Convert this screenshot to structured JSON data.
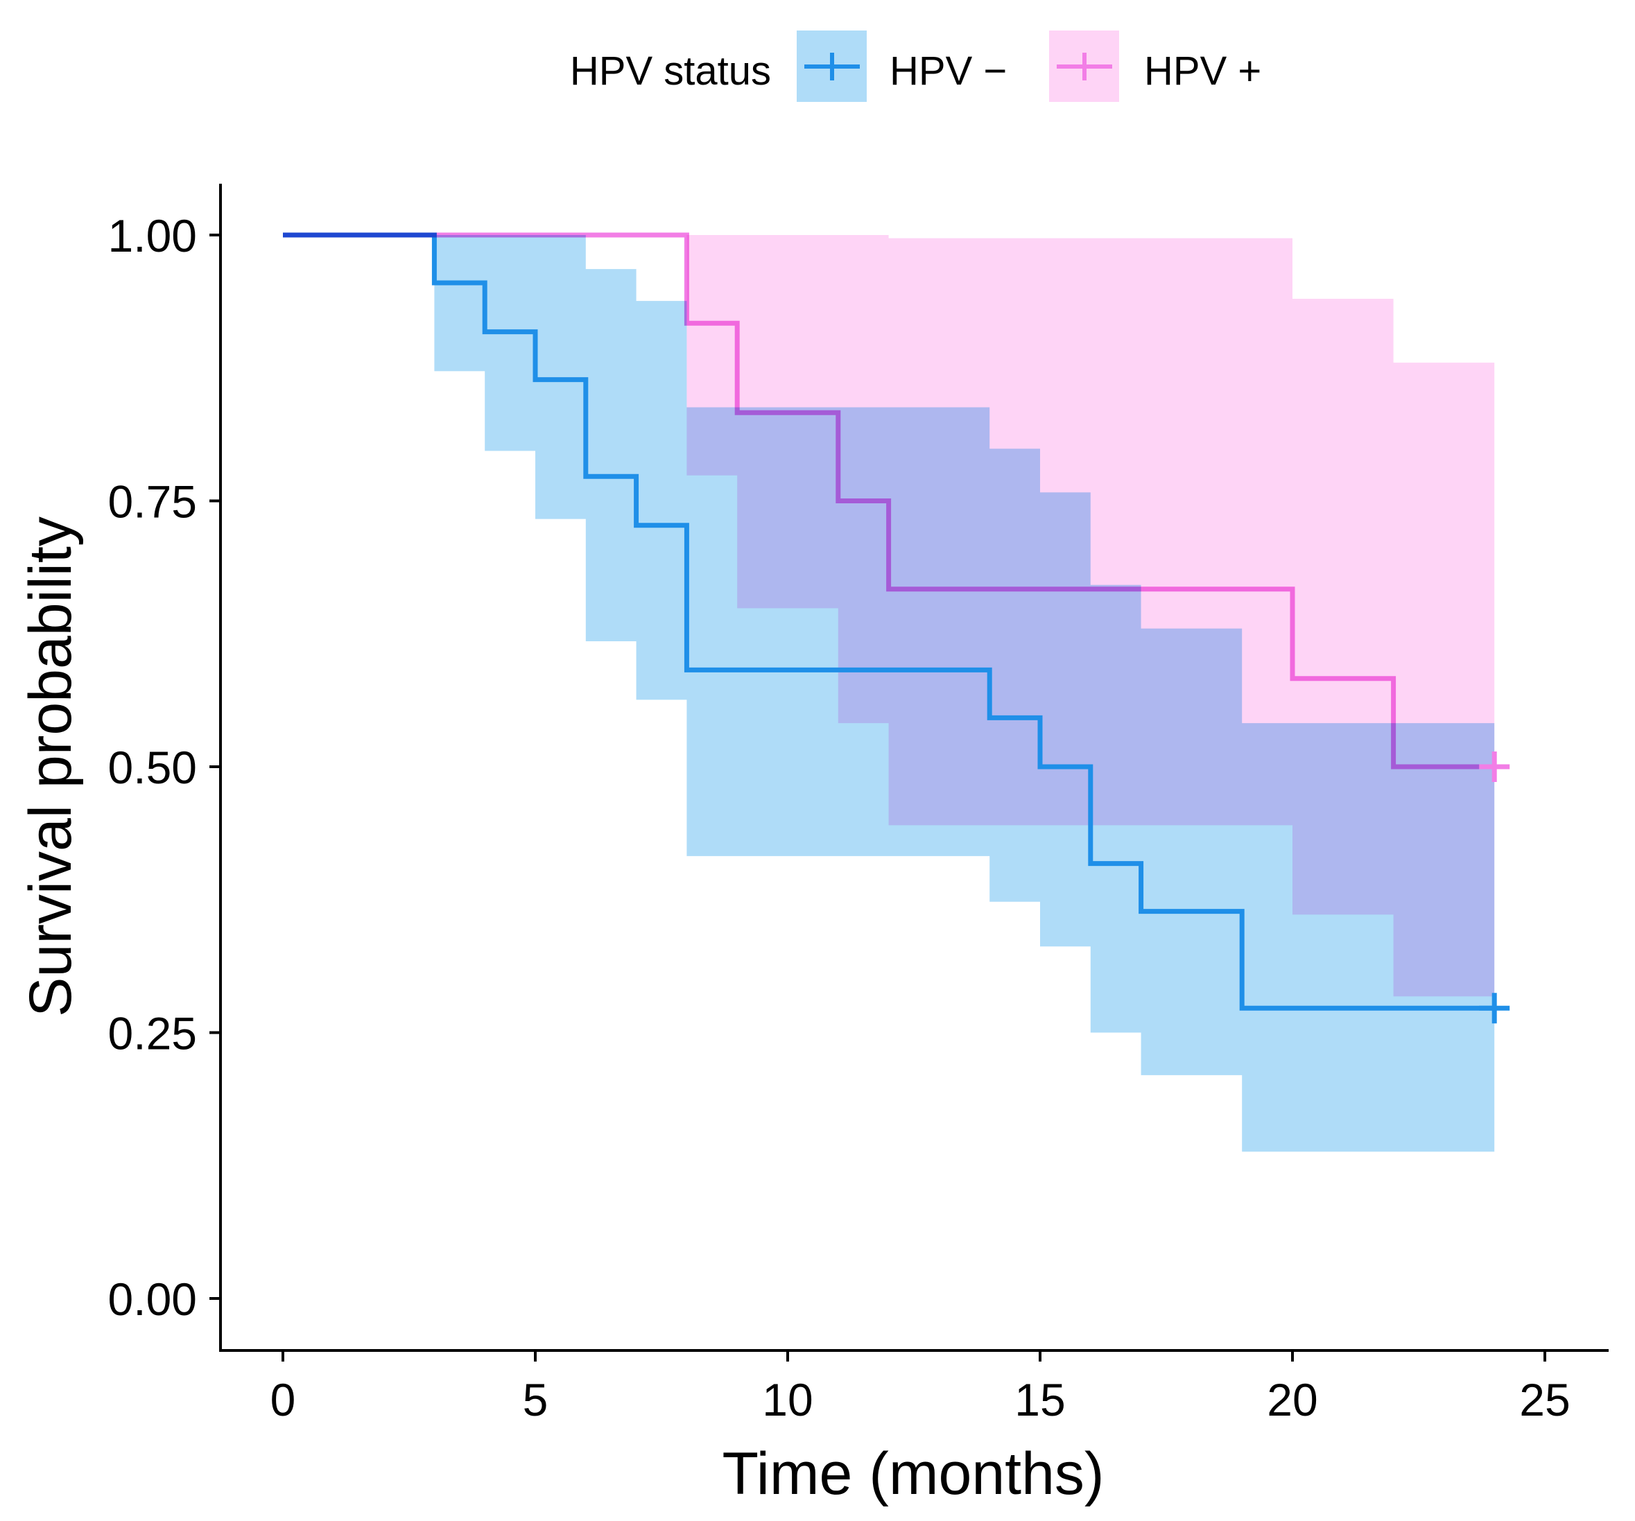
{
  "chart_data": {
    "type": "line",
    "subtype": "kaplan-meier survival curve with confidence bands",
    "xlabel": "Time (months)",
    "ylabel": "Survival probability",
    "xlim": [
      -1.2,
      26.3
    ],
    "ylim": [
      -0.05,
      1.05
    ],
    "x_ticks": [
      {
        "value": 0,
        "label": "0"
      },
      {
        "value": 5,
        "label": "5"
      },
      {
        "value": 10,
        "label": "10"
      },
      {
        "value": 15,
        "label": "15"
      },
      {
        "value": 20,
        "label": "20"
      },
      {
        "value": 25,
        "label": "25"
      }
    ],
    "y_ticks": [
      {
        "value": 0,
        "label": "0.00"
      },
      {
        "value": 0.25,
        "label": "0.25"
      },
      {
        "value": 0.5,
        "label": "0.50"
      },
      {
        "value": 0.75,
        "label": "0.75"
      },
      {
        "value": 1,
        "label": "1.00"
      }
    ],
    "grid": false,
    "legend": {
      "title": "HPV status",
      "position": "top"
    },
    "series": [
      {
        "name": "HPV −",
        "color": "#1f8fe8",
        "band_color": "#afdcf8",
        "end_time": 24,
        "steps": [
          {
            "t": 0,
            "s": 1.0,
            "lower": 1.0,
            "upper": 1.0
          },
          {
            "t": 3,
            "s": 0.955,
            "lower": 0.872,
            "upper": 1.0
          },
          {
            "t": 4,
            "s": 0.909,
            "lower": 0.797,
            "upper": 1.0
          },
          {
            "t": 5,
            "s": 0.864,
            "lower": 0.733,
            "upper": 1.0
          },
          {
            "t": 6,
            "s": 0.773,
            "lower": 0.618,
            "upper": 0.968
          },
          {
            "t": 7,
            "s": 0.727,
            "lower": 0.563,
            "upper": 0.938
          },
          {
            "t": 8,
            "s": 0.591,
            "lower": 0.416,
            "upper": 0.838
          },
          {
            "t": 14,
            "s": 0.546,
            "lower": 0.373,
            "upper": 0.799
          },
          {
            "t": 15,
            "s": 0.5,
            "lower": 0.331,
            "upper": 0.758
          },
          {
            "t": 16,
            "s": 0.409,
            "lower": 0.25,
            "upper": 0.671
          },
          {
            "t": 17,
            "s": 0.364,
            "lower": 0.21,
            "upper": 0.63
          },
          {
            "t": 19,
            "s": 0.273,
            "lower": 0.138,
            "upper": 0.541
          }
        ],
        "censored": [
          {
            "t": 24,
            "s": 0.273
          }
        ]
      },
      {
        "name": "HPV +",
        "color": "#f27ee6",
        "band_color": "#fed4f6",
        "end_time": 24,
        "steps": [
          {
            "t": 0,
            "s": 1.0,
            "lower": 1.0,
            "upper": 1.0
          },
          {
            "t": 8,
            "s": 0.917,
            "lower": 0.774,
            "upper": 1.0
          },
          {
            "t": 9,
            "s": 0.833,
            "lower": 0.649,
            "upper": 1.0
          },
          {
            "t": 11,
            "s": 0.75,
            "lower": 0.541,
            "upper": 1.0
          },
          {
            "t": 12,
            "s": 0.667,
            "lower": 0.445,
            "upper": 0.997
          },
          {
            "t": 20,
            "s": 0.583,
            "lower": 0.361,
            "upper": 0.94
          },
          {
            "t": 22,
            "s": 0.5,
            "lower": 0.284,
            "upper": 0.88
          }
        ],
        "censored": [
          {
            "t": 24,
            "s": 0.5
          }
        ]
      }
    ]
  }
}
